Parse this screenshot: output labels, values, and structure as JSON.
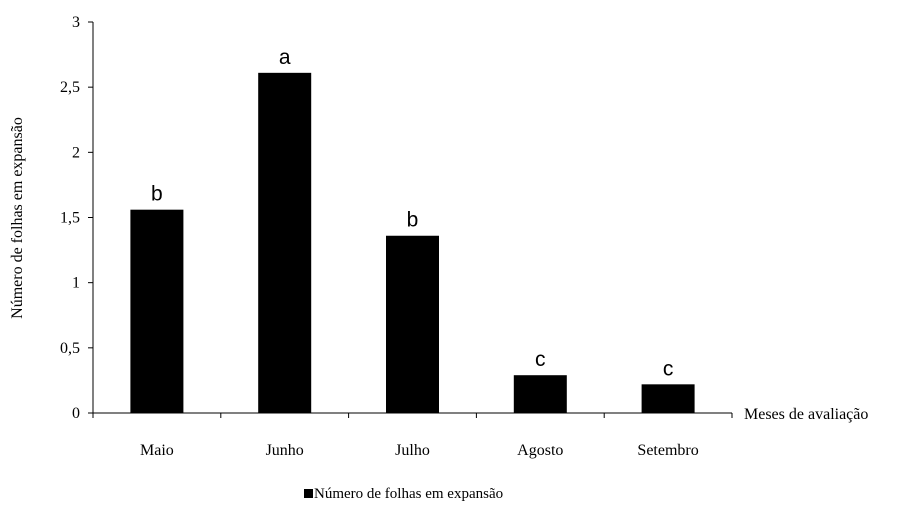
{
  "chart_data": {
    "type": "bar",
    "categories": [
      "Maio",
      "Junho",
      "Julho",
      "Agosto",
      "Setembro"
    ],
    "series": [
      {
        "name": "Número de folhas em expansão",
        "values": [
          1.56,
          2.61,
          1.36,
          0.29,
          0.22
        ],
        "labels": [
          "b",
          "a",
          "b",
          "c",
          "c"
        ],
        "color": "#000000"
      }
    ],
    "ylim": [
      0,
      3
    ],
    "yticks": [
      0,
      0.5,
      1,
      1.5,
      2,
      2.5,
      3
    ],
    "ytick_labels": [
      "0",
      "0,5",
      "1",
      "1,5",
      "2",
      "2,5",
      "3"
    ],
    "xlabel": "Meses de avaliação",
    "ylabel": "Número de folhas em expansão",
    "grid": false,
    "legend_position": "bottom-center"
  }
}
